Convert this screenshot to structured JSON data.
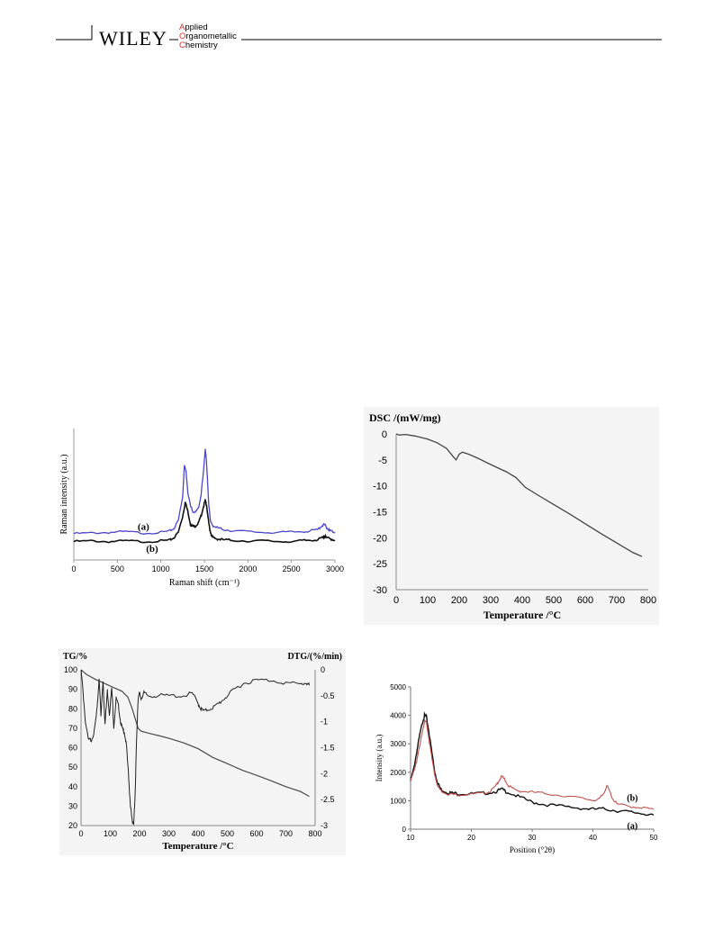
{
  "header": {
    "publisher": "WILEY",
    "journal_lines": [
      "Applied",
      "Organometallic",
      "Chemistry"
    ]
  },
  "chart_data": [
    {
      "id": "raman",
      "type": "line",
      "xlabel": "Raman shift (cm⁻¹)",
      "ylabel": "Raman intensity (a.u.)",
      "xlim": [
        0,
        3000
      ],
      "xticks": [
        0,
        500,
        1000,
        1500,
        2000,
        2500,
        3000
      ],
      "ylim": [
        0,
        100
      ],
      "series": [
        {
          "name": "(a)",
          "color": "#4b47c8",
          "x": [
            0,
            200,
            400,
            600,
            800,
            1000,
            1100,
            1150,
            1200,
            1250,
            1270,
            1290,
            1310,
            1340,
            1370,
            1400,
            1430,
            1460,
            1490,
            1510,
            1520,
            1535,
            1550,
            1570,
            1600,
            1650,
            1700,
            1800,
            2000,
            2200,
            2400,
            2600,
            2700,
            2800,
            2850,
            2880,
            2900,
            2930,
            2950,
            3000
          ],
          "y": [
            20,
            20.5,
            21,
            21.5,
            20.5,
            21,
            22,
            24,
            30,
            48,
            72,
            67,
            52,
            41,
            37,
            36.5,
            39,
            49,
            67,
            85,
            78,
            62,
            43,
            29,
            26,
            24.5,
            23.5,
            22.5,
            21.5,
            21,
            21,
            21.5,
            22,
            23,
            26,
            27,
            25,
            23,
            22,
            21
          ]
        },
        {
          "name": "(b)",
          "color": "#111111",
          "x": [
            0,
            200,
            400,
            600,
            800,
            1000,
            1100,
            1150,
            1200,
            1250,
            1280,
            1310,
            1340,
            1370,
            1400,
            1430,
            1460,
            1490,
            1510,
            1525,
            1540,
            1560,
            1580,
            1600,
            1650,
            1700,
            1800,
            2000,
            2200,
            2400,
            2600,
            2700,
            2800,
            2860,
            2880,
            2900,
            2950,
            3000
          ],
          "y": [
            14,
            14.5,
            14,
            14.5,
            14,
            14.5,
            15,
            17,
            21,
            33,
            44,
            37,
            27,
            25.5,
            26,
            28,
            33,
            41,
            45,
            42,
            33,
            24,
            19,
            17,
            16,
            15.5,
            15,
            14.5,
            14.5,
            14,
            14.5,
            15,
            15.5,
            17,
            18,
            17,
            16,
            15
          ]
        }
      ],
      "labels": [
        "(a)",
        "(b)"
      ]
    },
    {
      "id": "dsc",
      "type": "line",
      "title": "DSC /(mW/mg)",
      "xlabel": "Temperature /°C",
      "xlim": [
        0,
        800
      ],
      "ylim": [
        -30,
        0
      ],
      "xticks": [
        0,
        100,
        200,
        300,
        400,
        500,
        600,
        700,
        800
      ],
      "yticks": [
        0,
        -5,
        -10,
        -15,
        -20,
        -25,
        -30
      ],
      "series": [
        {
          "name": "",
          "color": "#444444",
          "x": [
            0,
            10,
            30,
            60,
            100,
            130,
            160,
            180,
            190,
            200,
            210,
            230,
            260,
            300,
            350,
            380,
            410,
            450,
            500,
            550,
            600,
            650,
            700,
            750,
            780
          ],
          "y": [
            0,
            -0.2,
            -0.1,
            -0.4,
            -1.0,
            -1.7,
            -2.8,
            -4.3,
            -5.0,
            -3.9,
            -3.5,
            -3.9,
            -4.7,
            -5.9,
            -7.3,
            -8.4,
            -10.3,
            -11.8,
            -13.6,
            -15.4,
            -17.3,
            -19.2,
            -21.0,
            -22.8,
            -23.6
          ]
        }
      ]
    },
    {
      "id": "tga",
      "type": "line",
      "title_left": "TG/%",
      "title_right": "DTG/(%/min)",
      "xlabel": "Temperature /°C",
      "xlim": [
        0,
        800
      ],
      "ylim": [
        20,
        100
      ],
      "y2lim": [
        -3,
        0
      ],
      "xticks": [
        0,
        100,
        200,
        300,
        400,
        500,
        600,
        700,
        800
      ],
      "yticks": [
        100,
        90,
        80,
        70,
        60,
        50,
        40,
        30,
        20
      ],
      "y2ticks": [
        0,
        -0.5,
        -1,
        -1.5,
        -2,
        -2.5,
        -3
      ],
      "series": [
        {
          "name": "TG",
          "color": "#4a4a4a",
          "x": [
            0,
            20,
            50,
            80,
            110,
            140,
            160,
            175,
            185,
            195,
            205,
            230,
            270,
            300,
            350,
            400,
            450,
            500,
            550,
            600,
            650,
            700,
            750,
            780
          ],
          "y": [
            100,
            97.5,
            95,
            93,
            91,
            89,
            86,
            80,
            75,
            70,
            68.5,
            67.5,
            66,
            64.8,
            62.5,
            59.5,
            55,
            51.8,
            48.5,
            45.8,
            43,
            40,
            37.5,
            35
          ]
        },
        {
          "name": "DTG",
          "color": "#222222",
          "axis": "right",
          "x": [
            0,
            5,
            15,
            25,
            35,
            45,
            55,
            62,
            68,
            75,
            82,
            90,
            97,
            105,
            112,
            120,
            128,
            135,
            142,
            148,
            155,
            162,
            168,
            175,
            180,
            185,
            190,
            195,
            200,
            205,
            215,
            230,
            260,
            300,
            350,
            380,
            400,
            410,
            420,
            440,
            460,
            480,
            500,
            530,
            560,
            600,
            650,
            700,
            750,
            770,
            780
          ],
          "y": [
            0,
            -0.3,
            -1.0,
            -1.35,
            -1.35,
            -1.2,
            -0.75,
            -0.15,
            -0.9,
            -0.2,
            -1.05,
            -0.4,
            -0.85,
            -0.35,
            -1.1,
            -0.55,
            -0.7,
            -1.0,
            -1.15,
            -1.2,
            -1.45,
            -2.0,
            -2.55,
            -2.95,
            -2.95,
            -2.4,
            -1.3,
            -0.55,
            -0.45,
            -0.55,
            -0.45,
            -0.5,
            -0.5,
            -0.5,
            -0.5,
            -0.45,
            -0.65,
            -0.75,
            -0.8,
            -0.75,
            -0.7,
            -0.6,
            -0.5,
            -0.35,
            -0.25,
            -0.2,
            -0.2,
            -0.25,
            -0.28,
            -0.25,
            -0.3
          ]
        }
      ]
    },
    {
      "id": "xrd",
      "type": "line",
      "xlabel": "Position (°2θ)",
      "ylabel": "Intensity (a.u.)",
      "xlim": [
        10,
        50
      ],
      "ylim": [
        0,
        5000
      ],
      "xticks": [
        10,
        20,
        30,
        40,
        50
      ],
      "yticks": [
        0,
        1000,
        2000,
        3000,
        4000,
        5000
      ],
      "series": [
        {
          "name": "(a)",
          "color": "#111111",
          "x": [
            10,
            10.5,
            11,
            11.5,
            12,
            12.3,
            12.6,
            13,
            13.5,
            14,
            14.5,
            15,
            16,
            17,
            18,
            20,
            22,
            24,
            25,
            26,
            28,
            30,
            32,
            35,
            38,
            40,
            42,
            44,
            46,
            48,
            50
          ],
          "y": [
            1700,
            2100,
            2700,
            3300,
            3800,
            4000,
            3950,
            3450,
            2700,
            2000,
            1600,
            1400,
            1300,
            1260,
            1250,
            1240,
            1260,
            1320,
            1400,
            1300,
            1120,
            950,
            870,
            800,
            740,
            700,
            710,
            650,
            600,
            560,
            500
          ]
        },
        {
          "name": "(b)",
          "color": "#c0504d",
          "x": [
            10,
            10.5,
            11,
            11.5,
            12,
            12.3,
            12.6,
            13,
            13.5,
            14,
            14.5,
            15,
            16,
            17,
            18,
            20,
            22,
            23,
            24,
            24.5,
            25,
            25.5,
            26,
            27,
            28,
            30,
            32,
            35,
            38,
            40,
            41,
            41.8,
            42.3,
            42.8,
            43.3,
            44,
            46,
            48,
            50
          ],
          "y": [
            1700,
            2000,
            2400,
            2900,
            3500,
            3800,
            3750,
            3200,
            2500,
            1900,
            1500,
            1350,
            1250,
            1220,
            1210,
            1230,
            1260,
            1320,
            1500,
            1700,
            1850,
            1750,
            1550,
            1400,
            1340,
            1300,
            1260,
            1180,
            1090,
            1020,
            1050,
            1250,
            1550,
            1300,
            1050,
            880,
            800,
            760,
            700
          ]
        }
      ],
      "labels": [
        "(b)",
        "(a)"
      ]
    }
  ]
}
